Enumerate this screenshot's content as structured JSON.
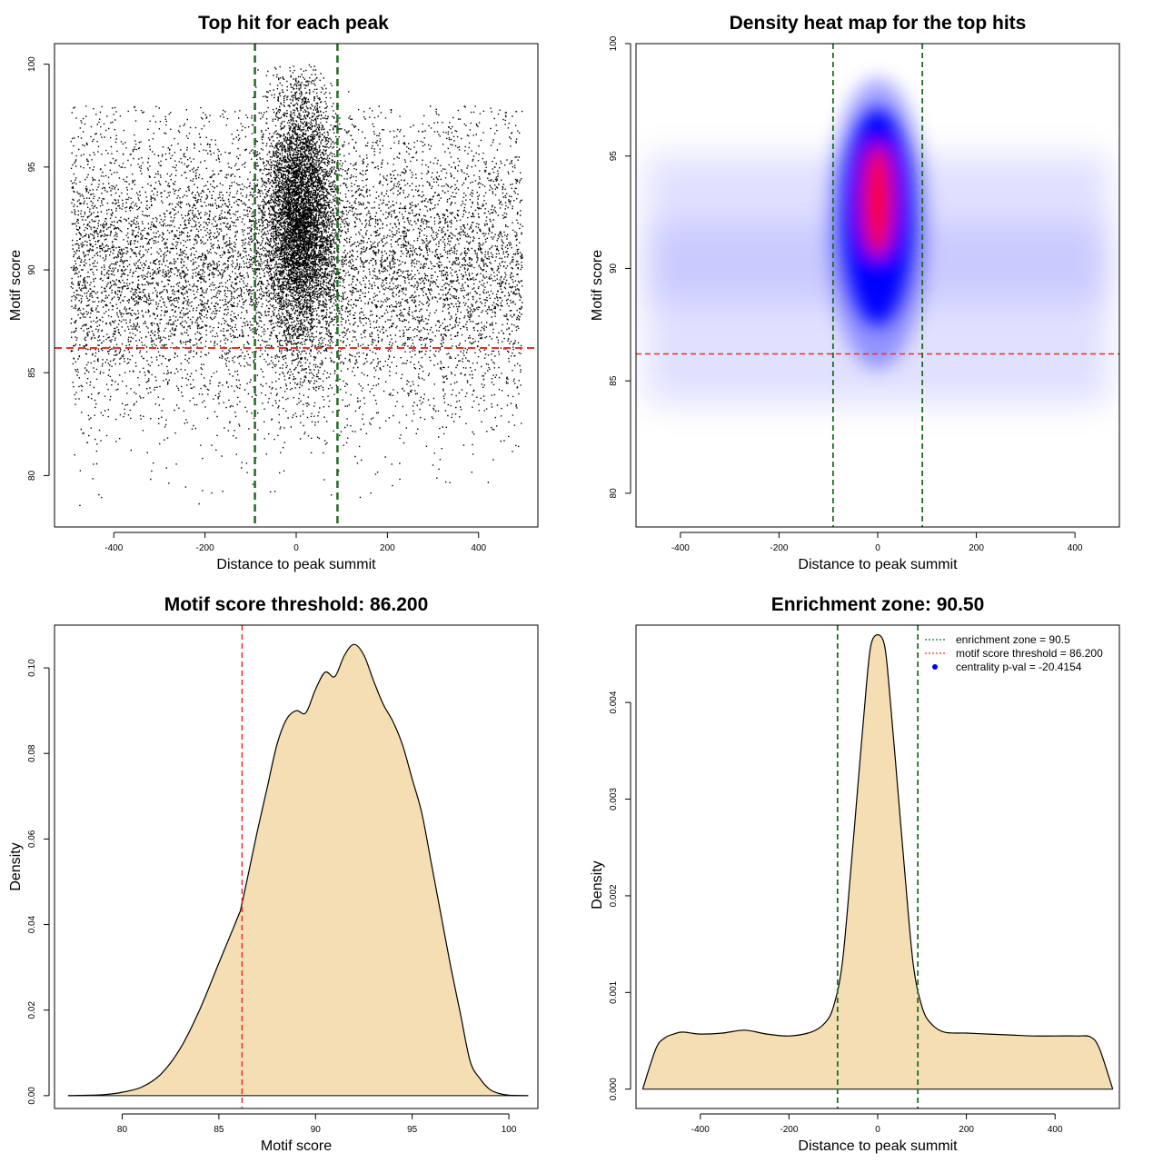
{
  "colors": {
    "threshold_line": "#e8302c",
    "zone_line": "#1e6e1e",
    "density_fill": "#f5deb3",
    "heat_low": "#ffffff",
    "heat_mid": "#0000ff",
    "heat_high": "#ff0000",
    "legend_point": "#0000ff"
  },
  "chart_data": [
    {
      "type": "scatter",
      "title": "Top hit for each peak",
      "xlabel": "Distance to peak summit",
      "ylabel": "Motif score",
      "xlim": [
        -530,
        530
      ],
      "ylim": [
        77.5,
        101
      ],
      "xticks": [
        -400,
        -200,
        0,
        200,
        400
      ],
      "yticks": [
        80,
        85,
        90,
        95,
        100
      ],
      "x_tick_labels": [
        "-400",
        "-200",
        "0",
        "200",
        "400"
      ],
      "y_tick_labels": [
        "80",
        "85",
        "90",
        "95",
        "100"
      ],
      "x_range_of_points": [
        -495,
        495
      ],
      "score_threshold": 86.2,
      "enrichment_zone": [
        -90.5,
        90.5
      ],
      "grid": false
    },
    {
      "type": "heatmap",
      "title": "Density heat map for the top hits",
      "xlabel": "Distance to peak summit",
      "ylabel": "Motif score",
      "xlim": [
        -490,
        490
      ],
      "ylim": [
        78.5,
        100
      ],
      "xticks": [
        -400,
        -200,
        0,
        200,
        400
      ],
      "yticks": [
        80,
        85,
        90,
        95,
        100
      ],
      "x_tick_labels": [
        "-400",
        "-200",
        "0",
        "200",
        "400"
      ],
      "y_tick_labels": [
        "80",
        "85",
        "90",
        "95",
        "100"
      ],
      "density_peak": {
        "x": 0,
        "y": 93
      },
      "score_threshold": 86.2,
      "enrichment_zone": [
        -90.5,
        90.5
      ],
      "grid": false
    },
    {
      "type": "area",
      "title": "Motif score threshold: 86.200",
      "xlabel": "Motif score",
      "ylabel": "Density",
      "xlim": [
        76.5,
        101.5
      ],
      "ylim": [
        -0.003,
        0.11
      ],
      "xticks": [
        80,
        85,
        90,
        95,
        100
      ],
      "yticks": [
        0,
        0.02,
        0.04,
        0.06,
        0.08,
        0.1
      ],
      "x_tick_labels": [
        "80",
        "85",
        "90",
        "95",
        "100"
      ],
      "y_tick_labels": [
        "0.00",
        "0.02",
        "0.04",
        "0.06",
        "0.08",
        "0.10"
      ],
      "x": [
        77.2,
        79,
        80,
        81,
        82,
        83,
        84,
        85,
        86,
        86.2,
        87,
        87.5,
        88,
        88.5,
        89,
        89.5,
        90,
        90.5,
        91,
        91.5,
        92,
        92.5,
        93,
        93.5,
        94,
        94.5,
        95,
        95.5,
        96,
        96.5,
        97,
        97.5,
        98,
        98.5,
        99,
        99.5,
        100,
        101
      ],
      "y": [
        0,
        0.0002,
        0.0008,
        0.002,
        0.005,
        0.011,
        0.02,
        0.031,
        0.042,
        0.045,
        0.062,
        0.072,
        0.082,
        0.088,
        0.09,
        0.0895,
        0.095,
        0.099,
        0.098,
        0.103,
        0.1055,
        0.103,
        0.097,
        0.0915,
        0.0875,
        0.082,
        0.074,
        0.066,
        0.054,
        0.042,
        0.03,
        0.019,
        0.008,
        0.004,
        0.0015,
        0.0005,
        0.0001,
        0
      ],
      "threshold": 86.2,
      "grid": false
    },
    {
      "type": "area",
      "title": "Enrichment zone: 90.50",
      "xlabel": "Distance to peak summit",
      "ylabel": "Density",
      "xlim": [
        -545,
        545
      ],
      "ylim": [
        -0.0002,
        0.0048
      ],
      "xticks": [
        -400,
        -200,
        0,
        200,
        400
      ],
      "yticks": [
        0,
        0.001,
        0.002,
        0.003,
        0.004
      ],
      "x_tick_labels": [
        "-400",
        "-200",
        "0",
        "200",
        "400"
      ],
      "y_tick_labels": [
        "0.000",
        "0.001",
        "0.002",
        "0.003",
        "0.004"
      ],
      "x": [
        -530,
        -500,
        -480,
        -460,
        -440,
        -400,
        -350,
        -300,
        -250,
        -200,
        -150,
        -120,
        -100,
        -80,
        -60,
        -40,
        -25,
        -15,
        0,
        15,
        25,
        40,
        60,
        80,
        100,
        120,
        150,
        200,
        250,
        300,
        350,
        400,
        450,
        480,
        500,
        530
      ],
      "y": [
        0,
        0.00042,
        0.00053,
        0.00057,
        0.00059,
        0.00057,
        0.00058,
        0.00061,
        0.00057,
        0.00055,
        0.00059,
        0.00068,
        0.00085,
        0.0013,
        0.0023,
        0.0034,
        0.0042,
        0.0046,
        0.0047,
        0.0046,
        0.0042,
        0.0034,
        0.0023,
        0.0013,
        0.00085,
        0.00068,
        0.00059,
        0.00058,
        0.00057,
        0.00056,
        0.00055,
        0.00055,
        0.00055,
        0.00054,
        0.00042,
        0
      ],
      "enrichment_zone": [
        -90.5,
        90.5
      ],
      "legend": {
        "placement": "top-right",
        "entries": [
          {
            "label": "enrichment zone = 90.5",
            "style": "dotted-green"
          },
          {
            "label": "motif score threshold = 86.200",
            "style": "dotted-red"
          },
          {
            "label": "centrality p-val = -20.4154",
            "style": "blue-point"
          }
        ]
      },
      "grid": false
    }
  ]
}
